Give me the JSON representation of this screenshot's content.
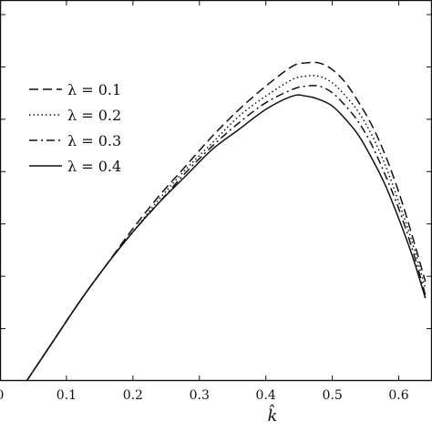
{
  "chart_data": {
    "type": "line",
    "title": "",
    "xlabel": "k̂",
    "ylabel": "",
    "xlim": [
      0,
      0.65
    ],
    "x_ticks": [
      {
        "value": 0.0,
        "label": "0"
      },
      {
        "value": 0.1,
        "label": "0.1"
      },
      {
        "value": 0.2,
        "label": "0.2"
      },
      {
        "value": 0.3,
        "label": "0.3"
      },
      {
        "value": 0.4,
        "label": "0.4"
      },
      {
        "value": 0.5,
        "label": "0.5"
      },
      {
        "value": 0.6,
        "label": "0.6"
      }
    ],
    "y_axis_ticks_count": 7,
    "y_tick_labels_visible": false,
    "grid": false,
    "legend_position": "left",
    "series": [
      {
        "name": "λ = 0.1",
        "dash": "dashed",
        "x": [
          0.04,
          0.08,
          0.12,
          0.16,
          0.2,
          0.24,
          0.28,
          0.32,
          0.36,
          0.4,
          0.44,
          0.46,
          0.48,
          0.5,
          0.52,
          0.54,
          0.56,
          0.58,
          0.6,
          0.62,
          0.64
        ],
        "y": [
          0.0,
          0.12,
          0.24,
          0.35,
          0.46,
          0.56,
          0.65,
          0.74,
          0.82,
          0.89,
          0.95,
          0.96,
          0.96,
          0.94,
          0.9,
          0.84,
          0.77,
          0.68,
          0.57,
          0.44,
          0.3
        ]
      },
      {
        "name": "λ = 0.2",
        "dash": "dotted",
        "x": [
          0.04,
          0.08,
          0.12,
          0.16,
          0.2,
          0.24,
          0.28,
          0.32,
          0.36,
          0.4,
          0.44,
          0.46,
          0.48,
          0.5,
          0.52,
          0.54,
          0.56,
          0.58,
          0.6,
          0.62,
          0.64
        ],
        "y": [
          0.0,
          0.12,
          0.24,
          0.35,
          0.45,
          0.55,
          0.64,
          0.72,
          0.8,
          0.86,
          0.91,
          0.92,
          0.92,
          0.9,
          0.86,
          0.81,
          0.74,
          0.65,
          0.54,
          0.42,
          0.28
        ]
      },
      {
        "name": "λ = 0.3",
        "dash": "dashdot",
        "x": [
          0.04,
          0.08,
          0.12,
          0.16,
          0.2,
          0.24,
          0.28,
          0.32,
          0.36,
          0.4,
          0.44,
          0.46,
          0.48,
          0.5,
          0.52,
          0.54,
          0.56,
          0.58,
          0.6,
          0.62,
          0.64
        ],
        "y": [
          0.0,
          0.12,
          0.24,
          0.35,
          0.45,
          0.54,
          0.63,
          0.71,
          0.78,
          0.84,
          0.88,
          0.89,
          0.89,
          0.87,
          0.83,
          0.78,
          0.71,
          0.62,
          0.52,
          0.4,
          0.26
        ]
      },
      {
        "name": "λ = 0.4",
        "dash": "solid",
        "x": [
          0.04,
          0.08,
          0.12,
          0.16,
          0.2,
          0.24,
          0.28,
          0.32,
          0.36,
          0.4,
          0.44,
          0.46,
          0.48,
          0.5,
          0.52,
          0.54,
          0.56,
          0.58,
          0.6,
          0.62,
          0.64
        ],
        "y": [
          0.0,
          0.12,
          0.24,
          0.35,
          0.45,
          0.54,
          0.62,
          0.7,
          0.76,
          0.82,
          0.86,
          0.86,
          0.85,
          0.83,
          0.79,
          0.74,
          0.67,
          0.59,
          0.49,
          0.38,
          0.25
        ]
      }
    ]
  }
}
